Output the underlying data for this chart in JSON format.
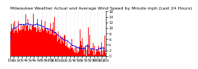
{
  "title": "Milwaukee Weather Actual and Average Wind Speed by Minute mph (Last 24 Hours)",
  "background_color": "#ffffff",
  "plot_background": "#ffffff",
  "grid_color": "#cccccc",
  "bar_color": "#ff0000",
  "line_color": "#0000ff",
  "num_points": 1440,
  "y_max": 16,
  "y_ticks": [
    0,
    2,
    4,
    6,
    8,
    10,
    12,
    14,
    16
  ],
  "title_fontsize": 4.5,
  "tick_fontsize": 3.5
}
